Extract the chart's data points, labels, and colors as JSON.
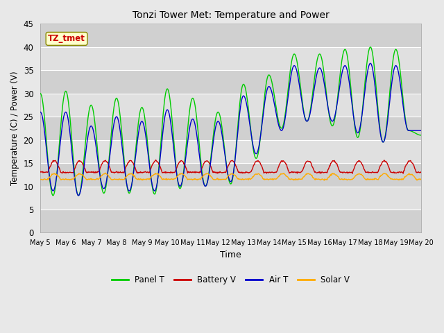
{
  "title": "Tonzi Tower Met: Temperature and Power",
  "xlabel": "Time",
  "ylabel": "Temperature (C) / Power (V)",
  "ylim": [
    0,
    45
  ],
  "yticks": [
    0,
    5,
    10,
    15,
    20,
    25,
    30,
    35,
    40,
    45
  ],
  "annotation_text": "TZ_tmet",
  "annotation_text_color": "#cc0000",
  "annotation_box_color": "#ffffcc",
  "annotation_box_edge": "#888800",
  "fig_bg_color": "#e8e8e8",
  "plot_bg_color": "#dcdcdc",
  "band_colors": [
    "#d0d0d0",
    "#e0e0e0"
  ],
  "grid_color": "#ffffff",
  "colors": {
    "Panel T": "#00cc00",
    "Battery V": "#cc0000",
    "Air T": "#0000cc",
    "Solar V": "#ffaa00"
  },
  "x_tick_labels": [
    "May 5",
    "May 6",
    "May 7",
    "May 8",
    "May 9",
    "May 10",
    "May 11",
    "May 12",
    "May 13",
    "May 14",
    "May 15",
    "May 16",
    "May 17",
    "May 18",
    "May 19",
    "May 20"
  ],
  "panel_peaks": [
    30.0,
    8.0,
    30.5,
    8.0,
    27.5,
    8.5,
    29.0,
    8.5,
    27.0,
    8.3,
    31.0,
    9.5,
    29.0,
    10.0,
    26.0,
    10.5,
    32.0,
    16.0,
    34.0,
    22.5,
    38.5,
    24.0,
    38.5,
    23.0,
    39.5,
    20.5,
    40.0,
    19.5,
    39.5,
    22.0,
    21.0
  ],
  "air_peaks": [
    26.0,
    9.0,
    26.0,
    8.0,
    23.0,
    9.5,
    25.0,
    9.0,
    24.0,
    9.0,
    26.5,
    10.0,
    24.5,
    10.0,
    24.0,
    11.0,
    29.5,
    17.0,
    31.5,
    22.0,
    36.0,
    24.0,
    35.5,
    24.0,
    36.0,
    21.5,
    36.5,
    19.5,
    36.0,
    22.0,
    22.0
  ],
  "battery_base": 13.0,
  "battery_peak_delta": 2.5,
  "solar_base": 11.5,
  "solar_peak_delta": 1.2
}
